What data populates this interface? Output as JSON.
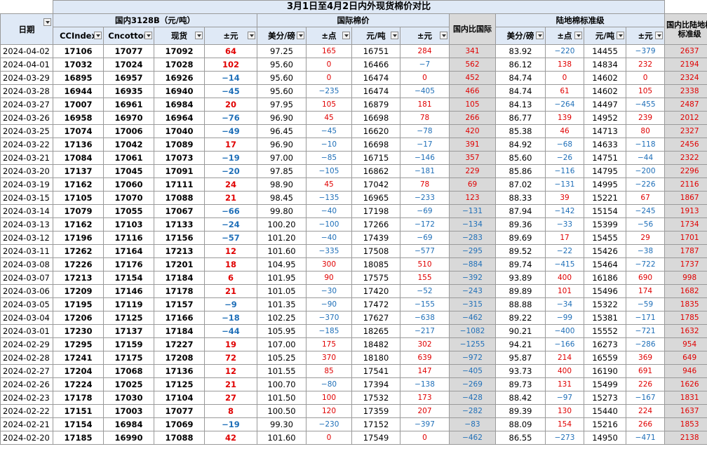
{
  "title": "3月1日至4月2日内外现货棉价对比",
  "groups": {
    "domestic": "国内3128B（元/吨）",
    "international": "国际棉价",
    "vs_international": "国内比国际",
    "land": "陆地棉标准级",
    "vs_land": "国内比陆地棉标准级"
  },
  "headers": [
    "日期",
    "CCIndex",
    "Cncotton",
    "现货",
    "±元",
    "美分/磅",
    "±点",
    "元/吨",
    "±元",
    "美分/磅",
    "±点",
    "元/吨",
    "±元"
  ],
  "colors": {
    "header_bg": "#dfe9f6",
    "grey_bg": "#d9d9d9",
    "red": "#e00000",
    "blue": "#1f6fb8"
  },
  "rows": [
    [
      "2024-04-02",
      "17106",
      "17077",
      "17092",
      "64",
      "97.25",
      "165",
      "16751",
      "284",
      "341",
      "83.92",
      "−220",
      "14455",
      "−379",
      "2637"
    ],
    [
      "2024-04-01",
      "17032",
      "17024",
      "17028",
      "102",
      "95.60",
      "0",
      "16466",
      "−7",
      "562",
      "86.12",
      "138",
      "14834",
      "232",
      "2194"
    ],
    [
      "2024-03-29",
      "16895",
      "16957",
      "16926",
      "−14",
      "95.60",
      "0",
      "16474",
      "0",
      "452",
      "84.74",
      "0",
      "14602",
      "0",
      "2324"
    ],
    [
      "2024-03-28",
      "16944",
      "16935",
      "16940",
      "−45",
      "95.60",
      "−235",
      "16474",
      "−405",
      "466",
      "84.74",
      "61",
      "14602",
      "105",
      "2338"
    ],
    [
      "2024-03-27",
      "17007",
      "16961",
      "16984",
      "20",
      "97.95",
      "105",
      "16879",
      "181",
      "105",
      "84.13",
      "−264",
      "14497",
      "−455",
      "2487"
    ],
    [
      "2024-03-26",
      "16958",
      "16970",
      "16964",
      "−76",
      "96.90",
      "45",
      "16698",
      "78",
      "266",
      "86.77",
      "139",
      "14952",
      "239",
      "2012"
    ],
    [
      "2024-03-25",
      "17074",
      "17006",
      "17040",
      "−49",
      "96.45",
      "−45",
      "16620",
      "−78",
      "420",
      "85.38",
      "46",
      "14713",
      "80",
      "2327"
    ],
    [
      "2024-03-22",
      "17136",
      "17042",
      "17089",
      "17",
      "96.90",
      "−10",
      "16698",
      "−17",
      "391",
      "84.92",
      "−68",
      "14633",
      "−118",
      "2456"
    ],
    [
      "2024-03-21",
      "17084",
      "17061",
      "17073",
      "−19",
      "97.00",
      "−85",
      "16715",
      "−146",
      "357",
      "85.60",
      "−26",
      "14751",
      "−44",
      "2322"
    ],
    [
      "2024-03-20",
      "17137",
      "17045",
      "17091",
      "−20",
      "97.85",
      "−105",
      "16862",
      "−181",
      "229",
      "85.86",
      "−116",
      "14795",
      "−200",
      "2296"
    ],
    [
      "2024-03-19",
      "17162",
      "17060",
      "17111",
      "24",
      "98.90",
      "45",
      "17042",
      "78",
      "69",
      "87.02",
      "−131",
      "14995",
      "−226",
      "2116"
    ],
    [
      "2024-03-15",
      "17105",
      "17070",
      "17088",
      "21",
      "98.45",
      "−135",
      "16965",
      "−233",
      "123",
      "88.33",
      "39",
      "15221",
      "67",
      "1867"
    ],
    [
      "2024-03-14",
      "17079",
      "17055",
      "17067",
      "−66",
      "99.80",
      "−40",
      "17198",
      "−69",
      "−131",
      "87.94",
      "−142",
      "15154",
      "−245",
      "1913"
    ],
    [
      "2024-03-13",
      "17162",
      "17103",
      "17133",
      "−24",
      "100.20",
      "−100",
      "17266",
      "−172",
      "−134",
      "89.36",
      "−33",
      "15399",
      "−56",
      "1734"
    ],
    [
      "2024-03-12",
      "17196",
      "17116",
      "17156",
      "−57",
      "101.20",
      "−40",
      "17439",
      "−69",
      "−283",
      "89.69",
      "17",
      "15455",
      "29",
      "1701"
    ],
    [
      "2024-03-11",
      "17262",
      "17164",
      "17213",
      "12",
      "101.60",
      "−335",
      "17508",
      "−577",
      "−295",
      "89.52",
      "−22",
      "15426",
      "−38",
      "1787"
    ],
    [
      "2024-03-08",
      "17226",
      "17176",
      "17201",
      "18",
      "104.95",
      "300",
      "18085",
      "510",
      "−884",
      "89.74",
      "−415",
      "15464",
      "−722",
      "1737"
    ],
    [
      "2024-03-07",
      "17213",
      "17154",
      "17184",
      "6",
      "101.95",
      "90",
      "17575",
      "155",
      "−392",
      "93.89",
      "400",
      "16186",
      "690",
      "998"
    ],
    [
      "2024-03-06",
      "17209",
      "17146",
      "17178",
      "21",
      "101.05",
      "−30",
      "17420",
      "−52",
      "−243",
      "89.89",
      "101",
      "15496",
      "174",
      "1682"
    ],
    [
      "2024-03-05",
      "17195",
      "17119",
      "17157",
      "−9",
      "101.35",
      "−90",
      "17472",
      "−155",
      "−315",
      "88.88",
      "−34",
      "15322",
      "−59",
      "1835"
    ],
    [
      "2024-03-04",
      "17206",
      "17125",
      "17166",
      "−18",
      "102.25",
      "−370",
      "17627",
      "−638",
      "−462",
      "89.22",
      "−99",
      "15381",
      "−171",
      "1785"
    ],
    [
      "2024-03-01",
      "17230",
      "17137",
      "17184",
      "−44",
      "105.95",
      "−185",
      "18265",
      "−217",
      "−1082",
      "90.21",
      "−400",
      "15552",
      "−721",
      "1632"
    ],
    [
      "2024-02-29",
      "17295",
      "17159",
      "17227",
      "19",
      "107.00",
      "175",
      "18482",
      "302",
      "−1255",
      "94.21",
      "−166",
      "16273",
      "−286",
      "954"
    ],
    [
      "2024-02-28",
      "17241",
      "17175",
      "17208",
      "72",
      "105.25",
      "370",
      "18180",
      "639",
      "−972",
      "95.87",
      "214",
      "16559",
      "369",
      "649"
    ],
    [
      "2024-02-27",
      "17204",
      "17068",
      "17136",
      "12",
      "101.55",
      "85",
      "17541",
      "147",
      "−405",
      "93.73",
      "400",
      "16190",
      "691",
      "946"
    ],
    [
      "2024-02-26",
      "17224",
      "17025",
      "17125",
      "21",
      "100.70",
      "−80",
      "17394",
      "−138",
      "−269",
      "89.73",
      "131",
      "15499",
      "226",
      "1626"
    ],
    [
      "2024-02-23",
      "17178",
      "17030",
      "17104",
      "27",
      "101.50",
      "100",
      "17532",
      "173",
      "−428",
      "88.42",
      "−97",
      "15273",
      "−167",
      "1831"
    ],
    [
      "2024-02-22",
      "17151",
      "17003",
      "17077",
      "8",
      "100.50",
      "120",
      "17359",
      "207",
      "−282",
      "89.39",
      "130",
      "15440",
      "224",
      "1637"
    ],
    [
      "2024-02-21",
      "17154",
      "16984",
      "17069",
      "−19",
      "99.30",
      "−230",
      "17152",
      "−397",
      "−83",
      "88.09",
      "154",
      "15216",
      "266",
      "1853"
    ],
    [
      "2024-02-20",
      "17185",
      "16990",
      "17088",
      "42",
      "101.60",
      "0",
      "17549",
      "0",
      "−462",
      "86.55",
      "−273",
      "14950",
      "−471",
      "2138"
    ]
  ]
}
